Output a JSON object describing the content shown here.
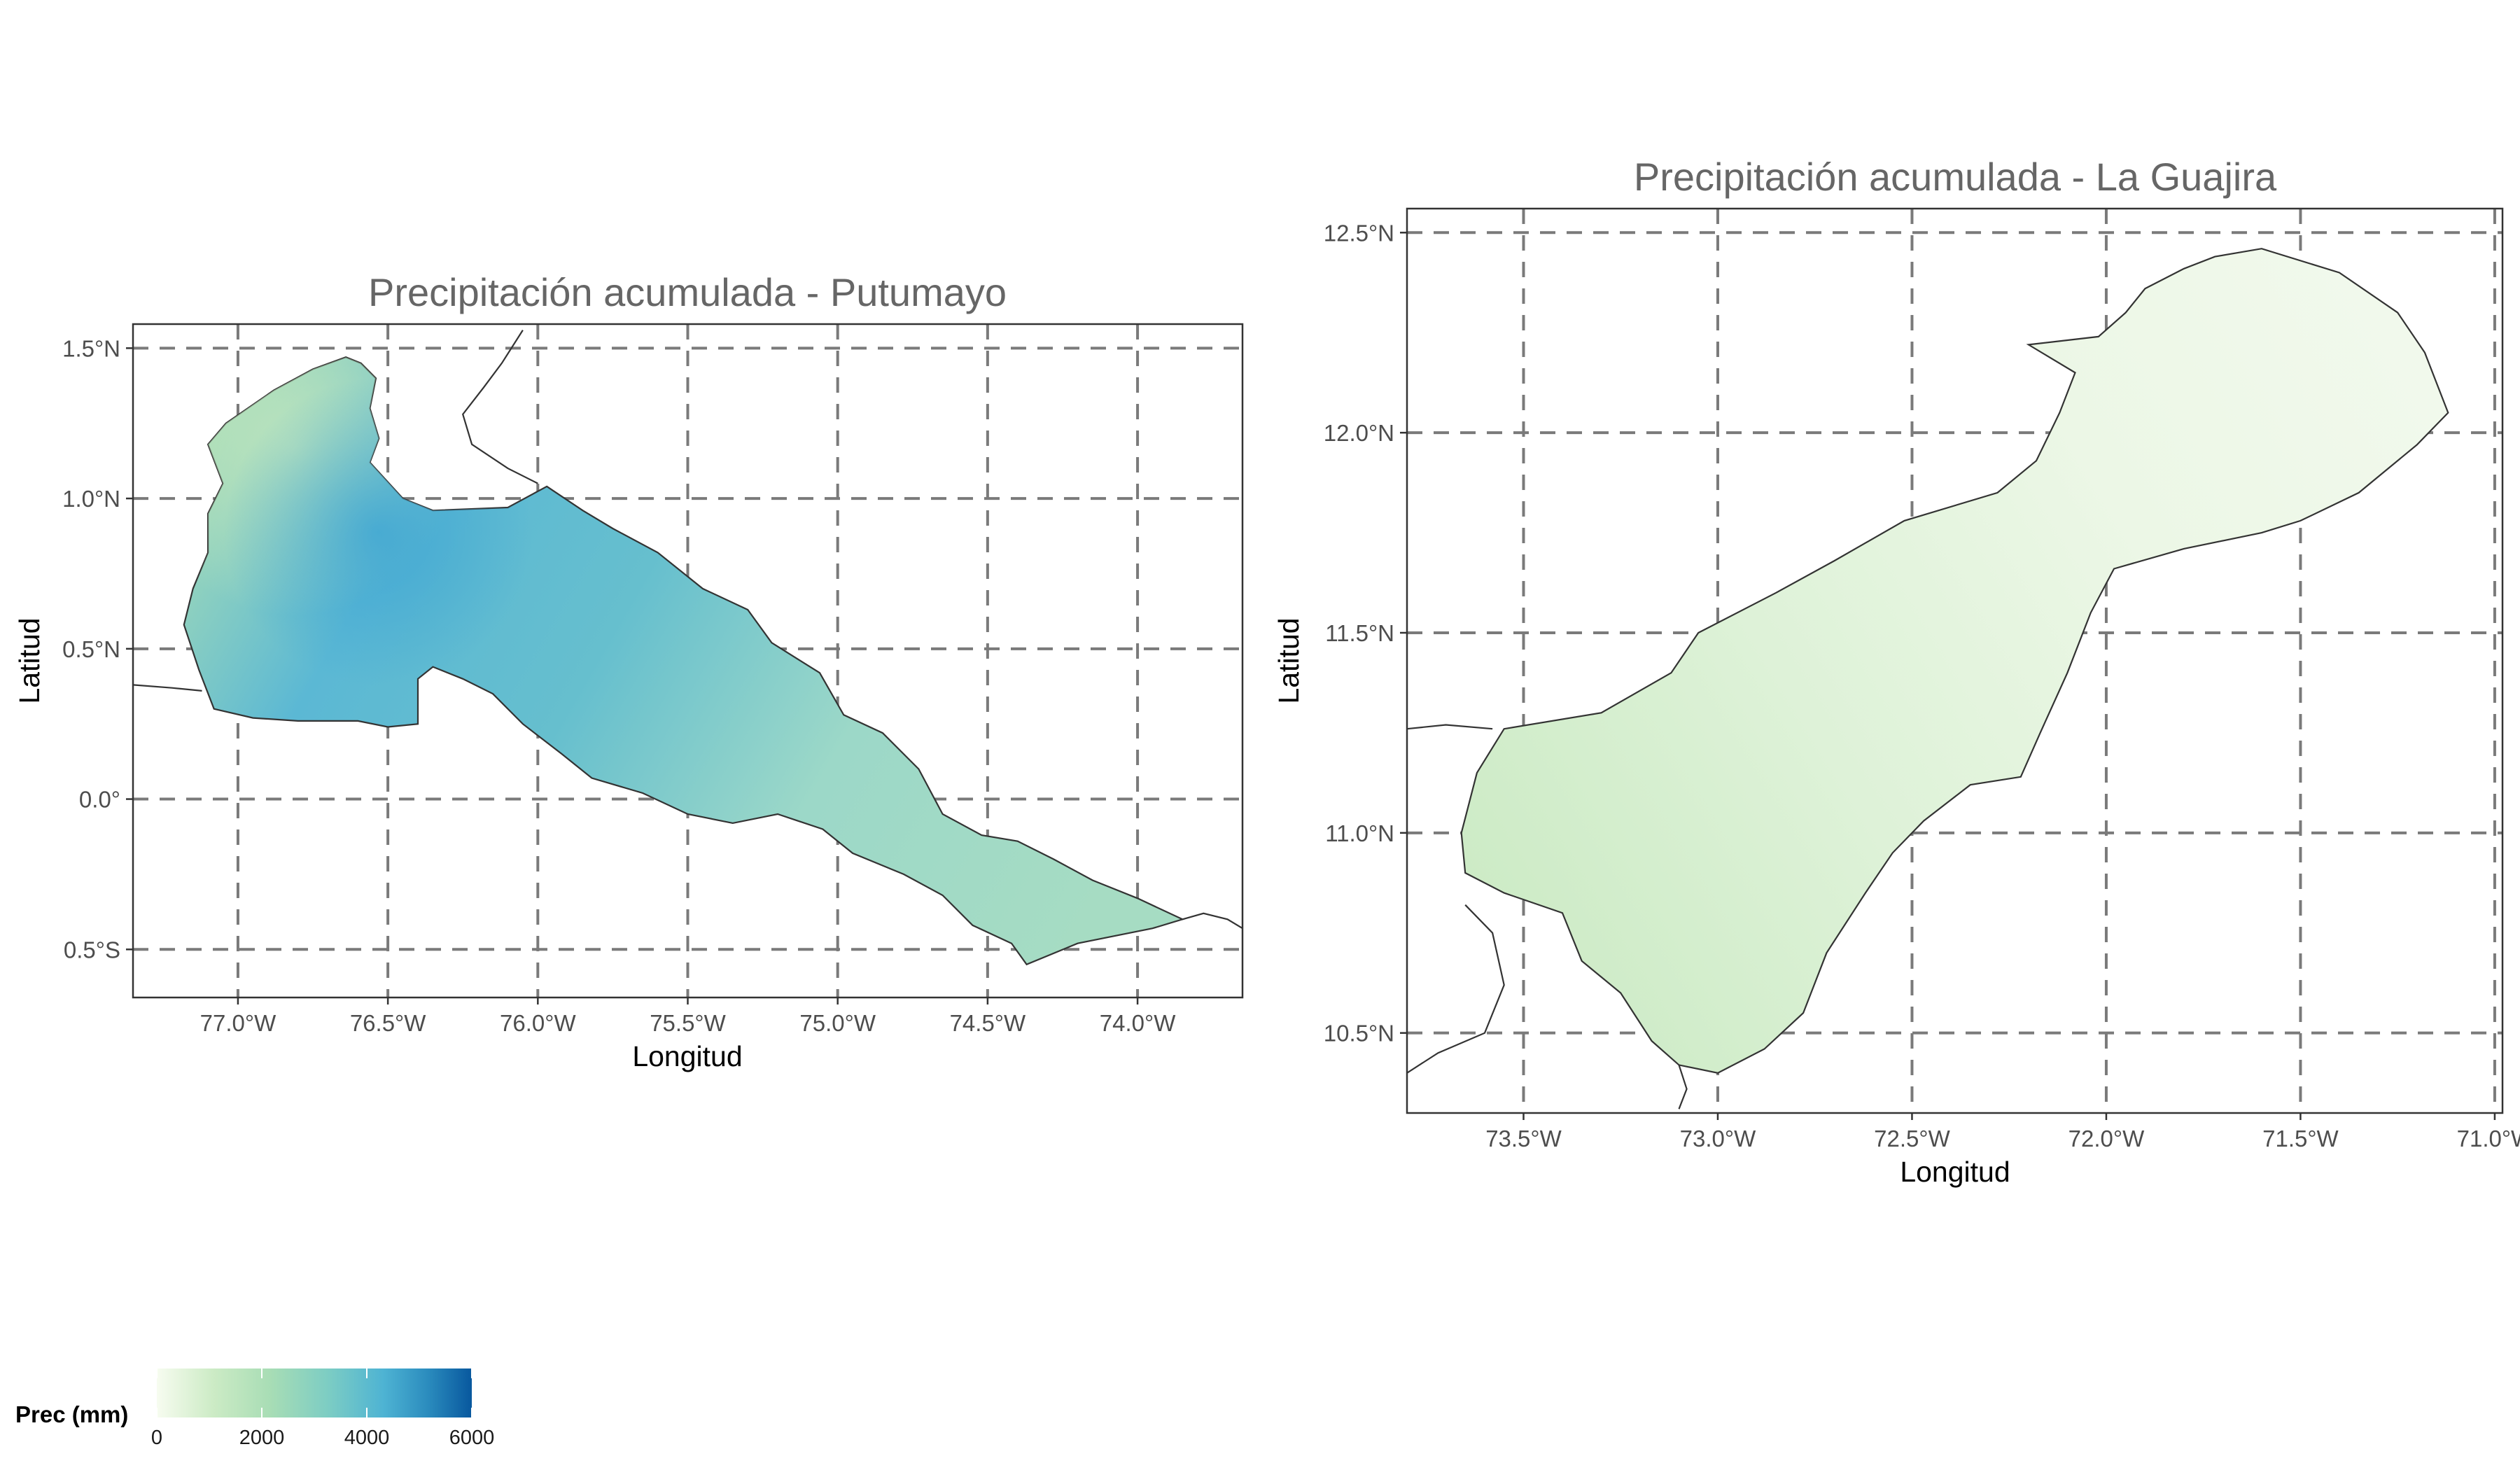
{
  "colors": {
    "low": "#f7fcf0",
    "mid": "#a8ddb5",
    "high": "#4eb3d3",
    "max": "#08589e",
    "grid": "#7a7a7a",
    "title": "#666666"
  },
  "chart_data": [
    {
      "type": "map",
      "title": "Precipitación acumulada - Putumayo",
      "xlabel": "Longitud",
      "ylabel": "Latitud",
      "xlim": [
        -77.35,
        -73.65
      ],
      "ylim": [
        -0.66,
        1.58
      ],
      "x_ticks": [
        -77.0,
        -76.5,
        -76.0,
        -75.5,
        -75.0,
        -74.5,
        -74.0
      ],
      "x_tick_labels": [
        "77.0°W",
        "76.5°W",
        "76.0°W",
        "75.5°W",
        "75.0°W",
        "74.5°W",
        "74.0°W"
      ],
      "y_ticks": [
        1.5,
        1.0,
        0.5,
        0.0,
        -0.5
      ],
      "y_tick_labels": [
        "1.5°N",
        "1.0°N",
        "0.5°N",
        "0.0°",
        "0.5°S"
      ],
      "grid": true,
      "fill_variable": "Prec (mm)",
      "region_outline": [
        [
          -76.59,
          1.45
        ],
        [
          -76.54,
          1.4
        ],
        [
          -76.56,
          1.3
        ],
        [
          -76.53,
          1.2
        ],
        [
          -76.56,
          1.12
        ],
        [
          -76.45,
          1.0
        ],
        [
          -76.35,
          0.96
        ],
        [
          -76.1,
          0.97
        ],
        [
          -75.97,
          1.04
        ],
        [
          -75.85,
          0.96
        ],
        [
          -75.75,
          0.9
        ],
        [
          -75.6,
          0.82
        ],
        [
          -75.45,
          0.7
        ],
        [
          -75.3,
          0.63
        ],
        [
          -75.22,
          0.52
        ],
        [
          -75.06,
          0.42
        ],
        [
          -74.98,
          0.28
        ],
        [
          -74.85,
          0.22
        ],
        [
          -74.73,
          0.1
        ],
        [
          -74.65,
          -0.05
        ],
        [
          -74.52,
          -0.12
        ],
        [
          -74.4,
          -0.14
        ],
        [
          -74.28,
          -0.2
        ],
        [
          -74.15,
          -0.27
        ],
        [
          -74.0,
          -0.33
        ],
        [
          -73.85,
          -0.4
        ],
        [
          -73.95,
          -0.43
        ],
        [
          -74.2,
          -0.48
        ],
        [
          -74.37,
          -0.55
        ],
        [
          -74.42,
          -0.48
        ],
        [
          -74.55,
          -0.42
        ],
        [
          -74.65,
          -0.32
        ],
        [
          -74.78,
          -0.25
        ],
        [
          -74.95,
          -0.18
        ],
        [
          -75.05,
          -0.1
        ],
        [
          -75.2,
          -0.05
        ],
        [
          -75.35,
          -0.08
        ],
        [
          -75.5,
          -0.05
        ],
        [
          -75.65,
          0.02
        ],
        [
          -75.82,
          0.07
        ],
        [
          -75.92,
          0.15
        ],
        [
          -76.05,
          0.25
        ],
        [
          -76.15,
          0.35
        ],
        [
          -76.25,
          0.4
        ],
        [
          -76.35,
          0.44
        ],
        [
          -76.4,
          0.4
        ],
        [
          -76.4,
          0.25
        ],
        [
          -76.5,
          0.24
        ],
        [
          -76.6,
          0.26
        ],
        [
          -76.8,
          0.26
        ],
        [
          -76.95,
          0.27
        ],
        [
          -77.08,
          0.3
        ],
        [
          -77.13,
          0.43
        ],
        [
          -77.18,
          0.58
        ],
        [
          -77.15,
          0.7
        ],
        [
          -77.1,
          0.82
        ],
        [
          -77.1,
          0.95
        ],
        [
          -77.05,
          1.05
        ],
        [
          -77.1,
          1.18
        ],
        [
          -77.04,
          1.25
        ],
        [
          -76.88,
          1.36
        ],
        [
          -76.75,
          1.43
        ],
        [
          -76.64,
          1.47
        ]
      ],
      "neighbor_borders": [
        [
          [
            -77.35,
            0.38
          ],
          [
            -77.22,
            0.37
          ],
          [
            -77.12,
            0.36
          ]
        ],
        [
          [
            -76.05,
            1.56
          ],
          [
            -76.12,
            1.45
          ],
          [
            -76.18,
            1.37
          ],
          [
            -76.25,
            1.28
          ],
          [
            -76.22,
            1.18
          ],
          [
            -76.1,
            1.1
          ],
          [
            -76.0,
            1.05
          ]
        ],
        [
          [
            -73.85,
            -0.4
          ],
          [
            -73.78,
            -0.38
          ],
          [
            -73.7,
            -0.4
          ],
          [
            -73.65,
            -0.43
          ]
        ]
      ],
      "precip_fill": [
        {
          "lon": -76.8,
          "lat": 1.25,
          "value": 2500
        },
        {
          "lon": -76.58,
          "lat": 1.05,
          "value": 4300
        },
        {
          "lon": -76.2,
          "lat": 0.6,
          "value": 4000
        },
        {
          "lon": -75.6,
          "lat": 0.45,
          "value": 3100
        },
        {
          "lon": -74.6,
          "lat": -0.2,
          "value": 2800
        }
      ]
    },
    {
      "type": "map",
      "title": "Precipitación acumulada - La Guajira",
      "xlabel": "Longitud",
      "ylabel": "Latitud",
      "xlim": [
        -73.8,
        -70.98
      ],
      "ylim": [
        10.3,
        12.56
      ],
      "x_ticks": [
        -73.5,
        -73.0,
        -72.5,
        -72.0,
        -71.5,
        -71.0
      ],
      "x_tick_labels": [
        "73.5°W",
        "73.0°W",
        "72.5°W",
        "72.0°W",
        "71.5°W",
        "71.0°W"
      ],
      "y_ticks": [
        12.5,
        12.0,
        11.5,
        11.0,
        10.5
      ],
      "y_tick_labels": [
        "12.5°N",
        "12.0°N",
        "11.5°N",
        "11.0°N",
        "10.5°N"
      ],
      "grid": true,
      "fill_variable": "Prec (mm)",
      "region_outline": [
        [
          -71.72,
          12.44
        ],
        [
          -71.6,
          12.46
        ],
        [
          -71.4,
          12.4
        ],
        [
          -71.25,
          12.3
        ],
        [
          -71.18,
          12.2
        ],
        [
          -71.12,
          12.05
        ],
        [
          -71.2,
          11.97
        ],
        [
          -71.35,
          11.85
        ],
        [
          -71.5,
          11.78
        ],
        [
          -71.6,
          11.75
        ],
        [
          -71.8,
          11.71
        ],
        [
          -71.98,
          11.66
        ],
        [
          -72.04,
          11.55
        ],
        [
          -72.1,
          11.4
        ],
        [
          -72.17,
          11.25
        ],
        [
          -72.22,
          11.14
        ],
        [
          -72.35,
          11.12
        ],
        [
          -72.47,
          11.03
        ],
        [
          -72.55,
          10.95
        ],
        [
          -72.62,
          10.85
        ],
        [
          -72.72,
          10.7
        ],
        [
          -72.78,
          10.55
        ],
        [
          -72.88,
          10.46
        ],
        [
          -73.0,
          10.4
        ],
        [
          -73.1,
          10.42
        ],
        [
          -73.17,
          10.48
        ],
        [
          -73.25,
          10.6
        ],
        [
          -73.35,
          10.68
        ],
        [
          -73.4,
          10.8
        ],
        [
          -73.55,
          10.85
        ],
        [
          -73.65,
          10.9
        ],
        [
          -73.66,
          11.0
        ],
        [
          -73.62,
          11.15
        ],
        [
          -73.55,
          11.26
        ],
        [
          -73.3,
          11.3
        ],
        [
          -73.12,
          11.4
        ],
        [
          -73.05,
          11.5
        ],
        [
          -72.85,
          11.6
        ],
        [
          -72.7,
          11.68
        ],
        [
          -72.52,
          11.78
        ],
        [
          -72.28,
          11.85
        ],
        [
          -72.18,
          11.93
        ],
        [
          -72.12,
          12.05
        ],
        [
          -72.08,
          12.15
        ],
        [
          -72.2,
          12.22
        ],
        [
          -72.02,
          12.24
        ],
        [
          -71.95,
          12.3
        ],
        [
          -71.9,
          12.36
        ],
        [
          -71.8,
          12.41
        ]
      ],
      "neighbor_borders": [
        [
          [
            -73.8,
            11.26
          ],
          [
            -73.7,
            11.27
          ],
          [
            -73.58,
            11.26
          ]
        ],
        [
          [
            -73.65,
            10.82
          ],
          [
            -73.58,
            10.75
          ],
          [
            -73.55,
            10.62
          ],
          [
            -73.6,
            10.5
          ],
          [
            -73.72,
            10.45
          ],
          [
            -73.8,
            10.4
          ]
        ],
        [
          [
            -73.1,
            10.42
          ],
          [
            -73.08,
            10.36
          ],
          [
            -73.1,
            10.31
          ]
        ]
      ],
      "precip_fill": [
        {
          "lon": -73.55,
          "lat": 10.98,
          "value": 1700
        },
        {
          "lon": -73.1,
          "lat": 10.9,
          "value": 1200
        },
        {
          "lon": -72.6,
          "lat": 11.5,
          "value": 900
        },
        {
          "lon": -71.6,
          "lat": 12.1,
          "value": 500
        }
      ]
    }
  ],
  "legend": {
    "title": "Prec (mm)",
    "min": 0,
    "max": 6000,
    "ticks": [
      "0",
      "2000",
      "4000",
      "6000"
    ],
    "tick_values": [
      0,
      2000,
      4000,
      6000
    ]
  }
}
